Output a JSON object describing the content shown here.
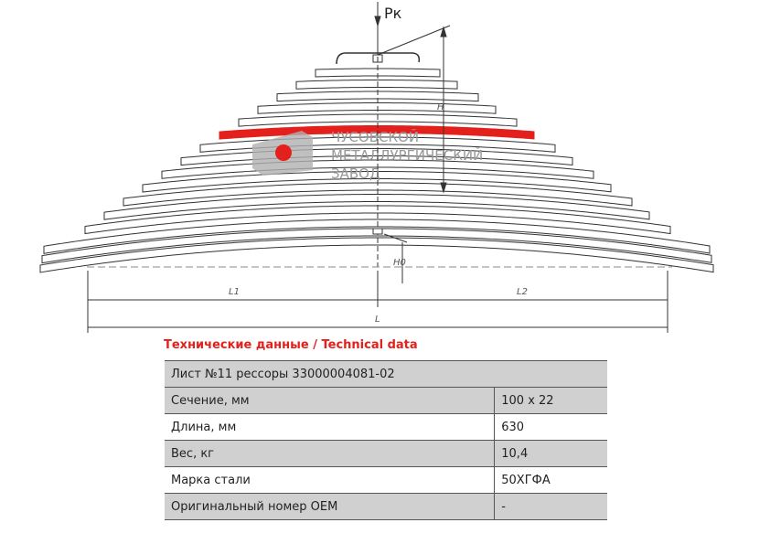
{
  "drawing": {
    "labels": {
      "force": "Pк",
      "height": "H",
      "height0": "H0",
      "left": "L1",
      "right": "L2",
      "length": "L"
    },
    "watermark": [
      "ЧУСОВСКОЙ",
      "МЕТАЛЛУРГИЧЕСКИЙ",
      "ЗАВОД"
    ]
  },
  "table": {
    "title": "Технические данные / Technical data",
    "header": "Лист №11 рессоры 33000004081-02",
    "rows": [
      [
        "Сечение, мм",
        "100 x 22"
      ],
      [
        "Длина, мм",
        "630"
      ],
      [
        "Вес, кг",
        "10,4"
      ],
      [
        "Марка стали",
        "50ХГФА"
      ],
      [
        "Оригинальный номер OEM",
        "-"
      ]
    ]
  }
}
